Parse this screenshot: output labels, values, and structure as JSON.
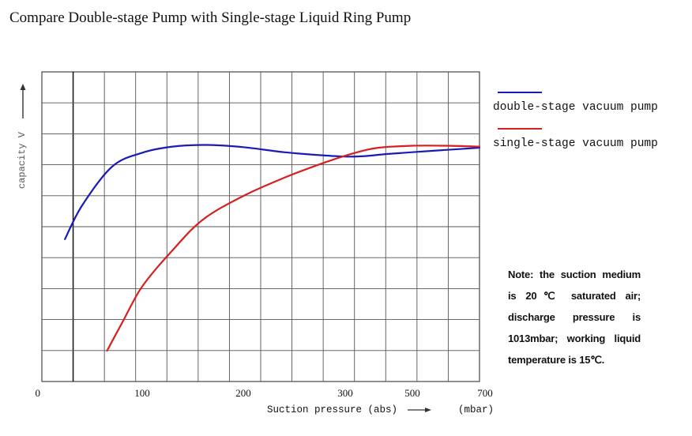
{
  "chart_data": {
    "type": "line",
    "title": "Compare Double-stage Pump with Single-stage Liquid Ring Pump",
    "xlabel": "Suction pressure (abs)",
    "xunit": "(mbar)",
    "ylabel": "capacity V",
    "x_ticks": [
      "0",
      "100",
      "200",
      "300",
      "500",
      "700"
    ],
    "grid": true,
    "legend_position": "top-right",
    "series": [
      {
        "name": "double-stage vacuum pump",
        "color": "#1a1ab8",
        "points": [
          [
            23,
            4.0
          ],
          [
            40,
            5.2
          ],
          [
            70,
            6.6
          ],
          [
            100,
            7.1
          ],
          [
            130,
            7.32
          ],
          [
            165,
            7.38
          ],
          [
            200,
            7.3
          ],
          [
            240,
            7.12
          ],
          [
            280,
            7.0
          ],
          [
            310,
            6.96
          ],
          [
            360,
            6.98
          ],
          [
            420,
            7.05
          ],
          [
            500,
            7.12
          ],
          [
            600,
            7.2
          ],
          [
            700,
            7.28
          ]
        ]
      },
      {
        "name": "single-stage vacuum pump",
        "color": "#d62020",
        "points": [
          [
            65,
            0.0
          ],
          [
            80,
            1.0
          ],
          [
            100,
            2.3
          ],
          [
            130,
            3.6
          ],
          [
            160,
            4.7
          ],
          [
            200,
            5.55
          ],
          [
            240,
            6.2
          ],
          [
            280,
            6.75
          ],
          [
            330,
            7.1
          ],
          [
            400,
            7.28
          ],
          [
            500,
            7.35
          ],
          [
            600,
            7.35
          ],
          [
            700,
            7.32
          ]
        ]
      }
    ]
  },
  "note": "Note: the suction medium is 20℃ saturated air; discharge pressure is 1013mbar; working liquid temperature is 15℃."
}
